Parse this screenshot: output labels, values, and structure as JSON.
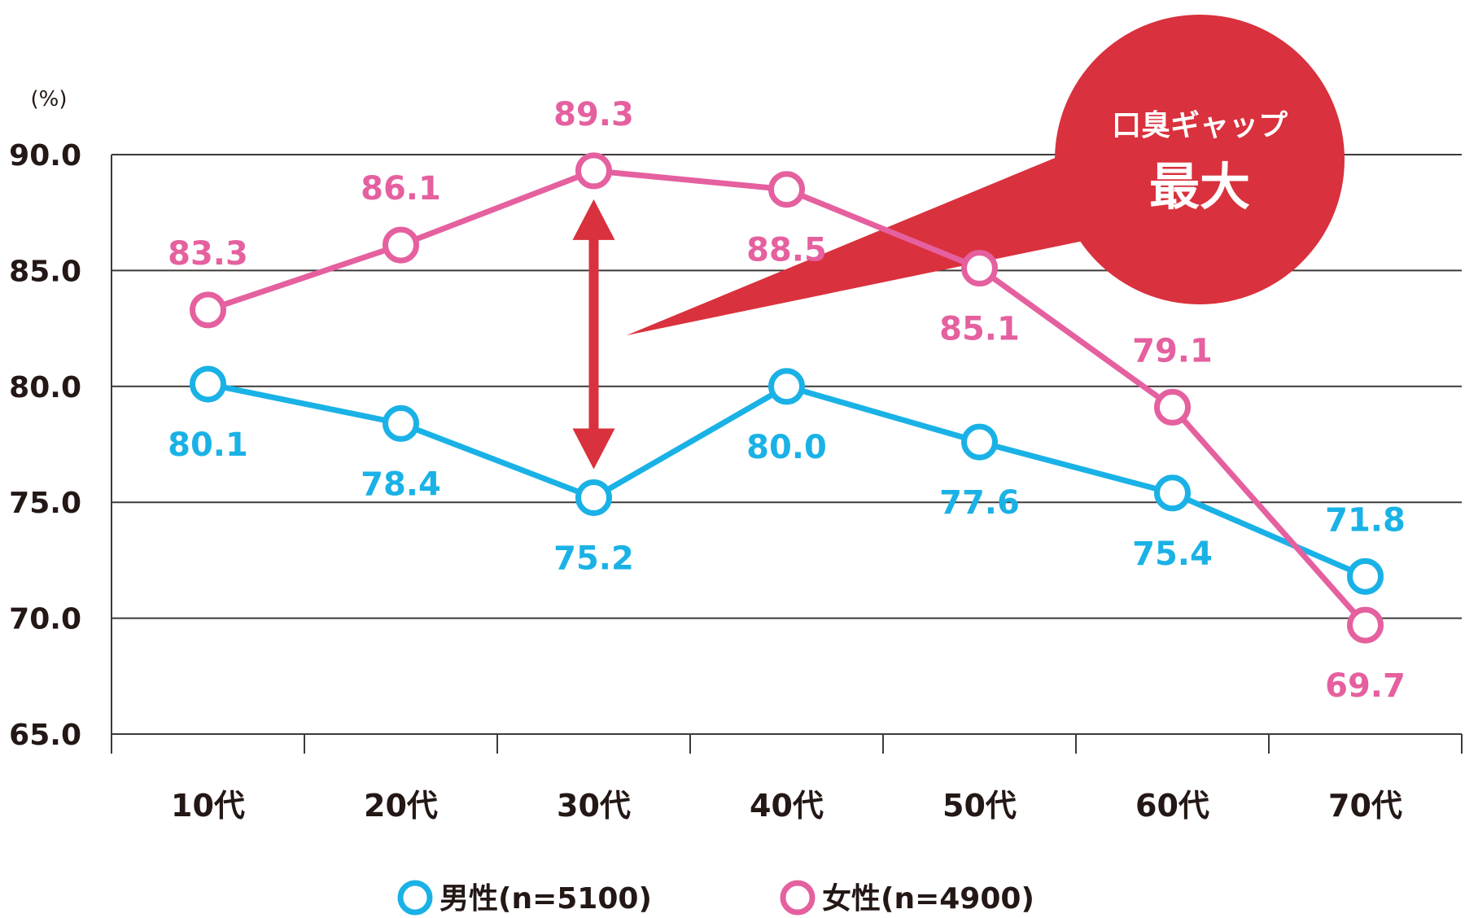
{
  "chart_data": {
    "type": "line",
    "unit_label": "(%)",
    "categories": [
      "10代",
      "20代",
      "30代",
      "40代",
      "50代",
      "60代",
      "70代"
    ],
    "ylim": [
      65,
      90
    ],
    "yticks": [
      "90.0",
      "85.0",
      "80.0",
      "75.0",
      "70.0",
      "65.0"
    ],
    "grid": true,
    "series": [
      {
        "name": "男性(n=5100)",
        "color": "#1ab2e6",
        "values": [
          80.1,
          78.4,
          75.2,
          80.0,
          77.6,
          75.4,
          71.8
        ],
        "labels": [
          "80.1",
          "78.4",
          "75.2",
          "80.0",
          "77.6",
          "75.4",
          "71.8"
        ]
      },
      {
        "name": "女性(n=4900)",
        "color": "#e5609f",
        "values": [
          83.3,
          86.1,
          89.3,
          88.5,
          85.1,
          79.1,
          69.7
        ],
        "labels": [
          "83.3",
          "86.1",
          "89.3",
          "88.5",
          "85.1",
          "79.1",
          "69.7"
        ]
      }
    ],
    "annotation": {
      "line1": "口臭ギャップ",
      "line2": "最大",
      "color": "#d9313d",
      "category": "30代"
    },
    "legend_position": "bottom-center"
  }
}
